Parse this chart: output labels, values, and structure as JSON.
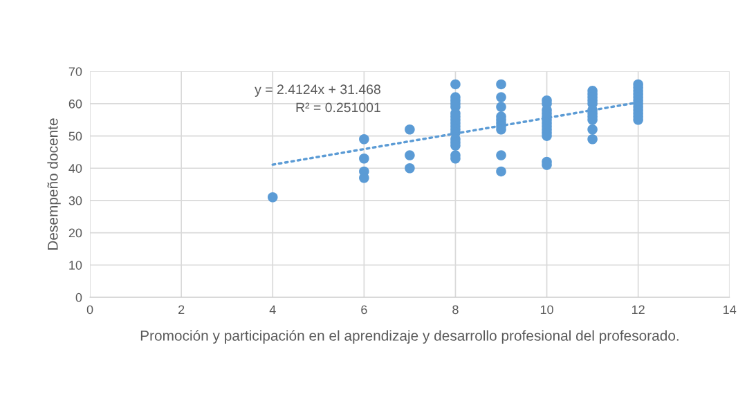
{
  "chart_data": {
    "type": "scatter",
    "xlabel": "Promoción y participación en el aprendizaje y desarrollo profesional del profesorado.",
    "ylabel": "Desempeño docente",
    "series": [
      {
        "type": "scatter",
        "color": "#5b9bd5",
        "marker": "circle",
        "x": [
          4,
          6,
          6,
          6,
          6,
          7,
          7,
          7,
          8,
          8,
          8,
          8,
          8,
          8,
          8,
          8,
          8,
          8,
          8,
          8,
          8,
          8,
          8,
          8,
          8,
          9,
          9,
          9,
          9,
          9,
          9,
          9,
          9,
          9,
          9,
          10,
          10,
          10,
          10,
          10,
          10,
          10,
          10,
          10,
          10,
          10,
          10,
          10,
          11,
          11,
          11,
          11,
          11,
          11,
          11,
          11,
          11,
          11,
          11,
          12,
          12,
          12,
          12,
          12,
          12,
          12,
          12,
          12,
          12,
          12,
          12
        ],
        "values": [
          31,
          49,
          43,
          39,
          37,
          52,
          44,
          40,
          66,
          62,
          61,
          60,
          59,
          57,
          56,
          55,
          54,
          53,
          52,
          51,
          49,
          48,
          47,
          44,
          43,
          66,
          62,
          59,
          56,
          55,
          54,
          53,
          52,
          44,
          39,
          61,
          60,
          58,
          57,
          56,
          55,
          54,
          53,
          52,
          51,
          50,
          42,
          41,
          64,
          63,
          62,
          61,
          60,
          58,
          57,
          56,
          55,
          52,
          49,
          66,
          65,
          64,
          63,
          62,
          61,
          60,
          59,
          58,
          57,
          56,
          55
        ]
      },
      {
        "type": "line",
        "color": "#5b9bd5",
        "line_style": "dotted",
        "marker": "none",
        "x": [
          4,
          12
        ],
        "values": [
          41.1,
          60.4
        ]
      }
    ],
    "annotations": [
      "y = 2.4124x + 31.468",
      "R² = 0.251001"
    ],
    "xlim": [
      0,
      14
    ],
    "xticks": [
      0,
      2,
      4,
      6,
      8,
      10,
      12,
      14
    ],
    "ylim": [
      0,
      70
    ],
    "yticks": [
      0,
      10,
      20,
      30,
      40,
      50,
      60,
      70
    ],
    "grid": true,
    "legend": false
  }
}
